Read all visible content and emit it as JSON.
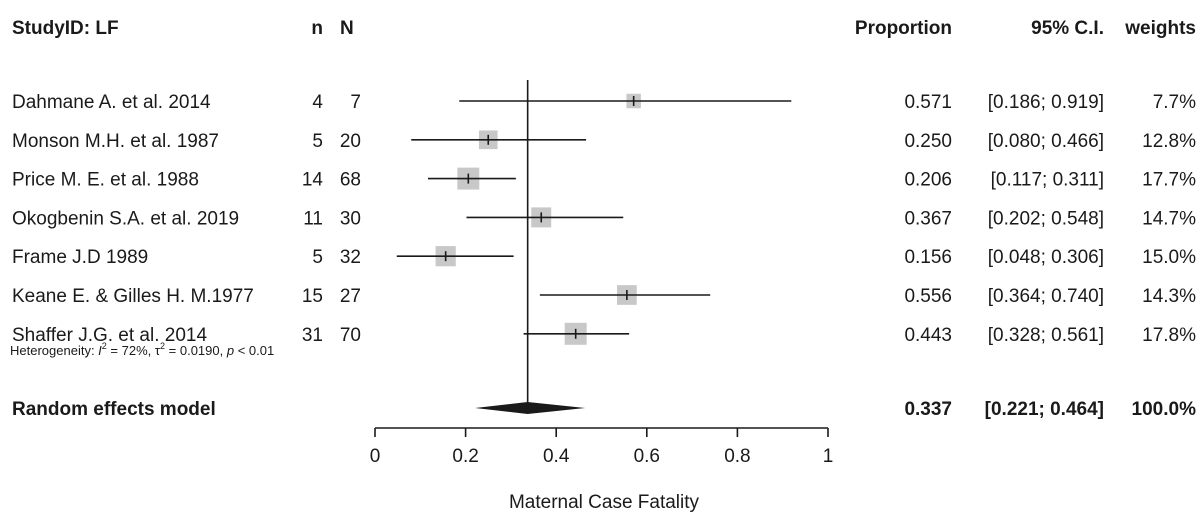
{
  "chart_data": {
    "type": "forest",
    "headers": {
      "study": "StudyID: LF",
      "n": "n",
      "N": "N",
      "proportion": "Proportion",
      "ci": "95% C.I.",
      "weights": "weights"
    },
    "studies": [
      {
        "label": "Dahmane A. et al. 2014",
        "n": "4",
        "N": "7",
        "proportion": 0.571,
        "lower": 0.186,
        "upper": 0.919,
        "proportion_text": "0.571",
        "ci_text": "[0.186; 0.919]",
        "weight": 7.7,
        "weight_text": "7.7%"
      },
      {
        "label": "Monson M.H. et al. 1987",
        "n": "5",
        "N": "20",
        "proportion": 0.25,
        "lower": 0.08,
        "upper": 0.466,
        "proportion_text": "0.250",
        "ci_text": "[0.080; 0.466]",
        "weight": 12.8,
        "weight_text": "12.8%"
      },
      {
        "label": "Price M. E. et al. 1988",
        "n": "14",
        "N": "68",
        "proportion": 0.206,
        "lower": 0.117,
        "upper": 0.311,
        "proportion_text": "0.206",
        "ci_text": "[0.117; 0.311]",
        "weight": 17.7,
        "weight_text": "17.7%"
      },
      {
        "label": "Okogbenin S.A. et al. 2019",
        "n": "11",
        "N": "30",
        "proportion": 0.367,
        "lower": 0.202,
        "upper": 0.548,
        "proportion_text": "0.367",
        "ci_text": "[0.202; 0.548]",
        "weight": 14.7,
        "weight_text": "14.7%"
      },
      {
        "label": "Frame J.D 1989",
        "n": "5",
        "N": "32",
        "proportion": 0.156,
        "lower": 0.048,
        "upper": 0.306,
        "proportion_text": "0.156",
        "ci_text": "[0.048; 0.306]",
        "weight": 15.0,
        "weight_text": "15.0%"
      },
      {
        "label": "Keane E. & Gilles H. M.1977",
        "n": "15",
        "N": "27",
        "proportion": 0.556,
        "lower": 0.364,
        "upper": 0.74,
        "proportion_text": "0.556",
        "ci_text": "[0.364; 0.740]",
        "weight": 14.3,
        "weight_text": "14.3%"
      },
      {
        "label": "Shaffer J.G. et al. 2014",
        "n": "31",
        "N": "70",
        "proportion": 0.443,
        "lower": 0.328,
        "upper": 0.561,
        "proportion_text": "0.443",
        "ci_text": "[0.328; 0.561]",
        "weight": 17.8,
        "weight_text": "17.8%"
      }
    ],
    "summary": {
      "label": "Random effects model",
      "proportion": 0.337,
      "lower": 0.221,
      "upper": 0.464,
      "proportion_text": "0.337",
      "ci_text": "[0.221; 0.464]",
      "weight_text": "100.0%"
    },
    "heterogeneity": {
      "prefix": "Heterogeneity: ",
      "i2_symbol": "I",
      "i2_exp": "2",
      "i2_value": " = 72%, ",
      "tau_symbol": "τ",
      "tau_exp": "2",
      "tau_value": " = 0.0190, ",
      "p_symbol": "p",
      "p_value": " < 0.01"
    },
    "xaxis": {
      "label": "Maternal Case Fatality",
      "ticks": [
        0,
        0.2,
        0.4,
        0.6,
        0.8,
        1
      ],
      "tick_labels": [
        "0",
        "0.2",
        "0.4",
        "0.6",
        "0.8",
        "1"
      ],
      "xlim": [
        0,
        1
      ]
    },
    "colors": {
      "square": "#c8c8c8",
      "ink": "#1a1a1a",
      "diamond": "#1a1a1a"
    }
  }
}
